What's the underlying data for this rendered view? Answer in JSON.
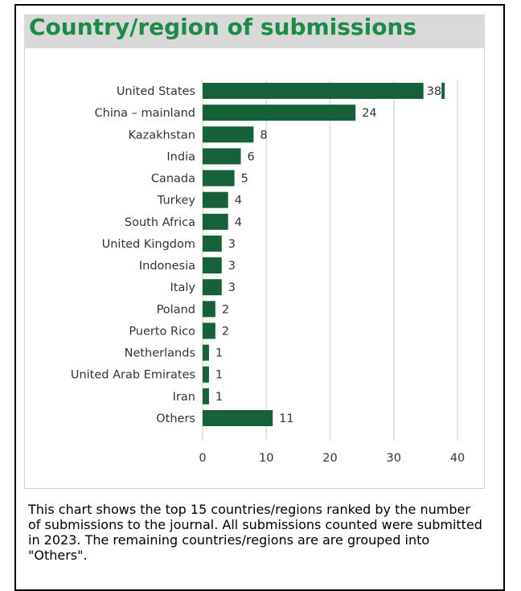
{
  "chart_data": {
    "type": "bar",
    "orientation": "horizontal",
    "title": "Country/region of submissions",
    "categories": [
      "United States",
      "China – mainland",
      "Kazakhstan",
      "India",
      "Canada",
      "Turkey",
      "South Africa",
      "United Kingdom",
      "Indonesia",
      "Italy",
      "Poland",
      "Puerto Rico",
      "Netherlands",
      "United Arab Emirates",
      "Iran",
      "Others"
    ],
    "values": [
      38,
      24,
      8,
      6,
      5,
      4,
      4,
      3,
      3,
      3,
      2,
      2,
      1,
      1,
      1,
      11
    ],
    "color": "#17613a",
    "xlim": [
      0,
      40
    ],
    "xticks": [
      0,
      10,
      20,
      30,
      40
    ],
    "grid": true,
    "caption": "This chart shows the top 15 countries/regions ranked by the number of submissions to the journal. All submissions counted were submitted in 2023. The remaining countries/regions are are grouped into \"Others\"."
  }
}
